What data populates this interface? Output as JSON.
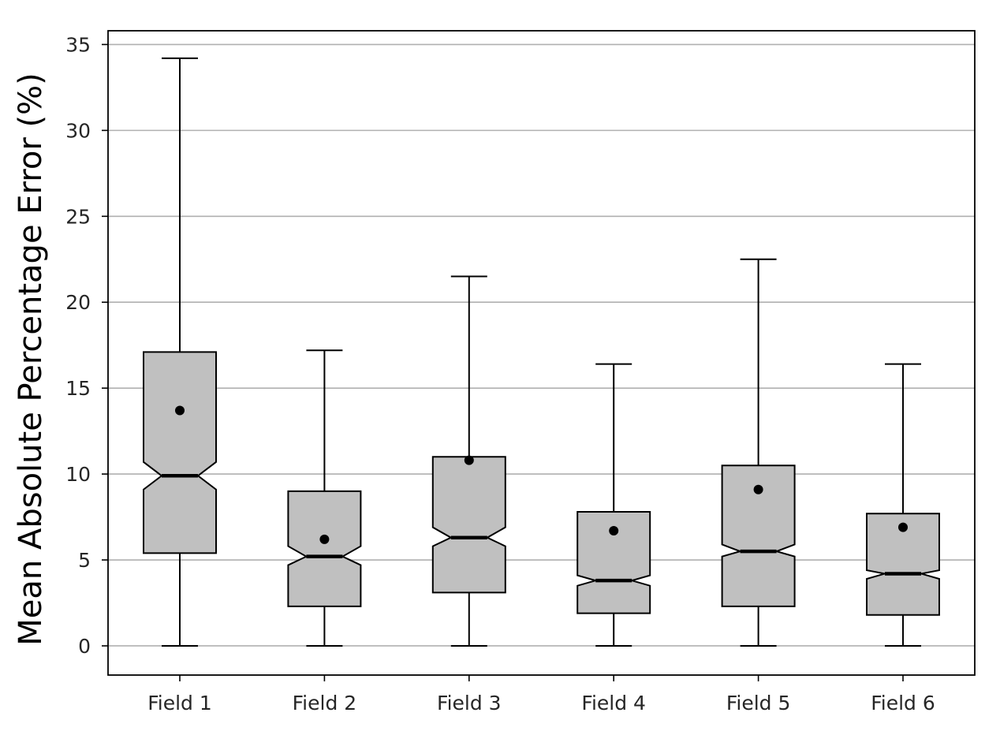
{
  "chart_data": {
    "type": "boxplot",
    "ylabel": "Mean Absolute Percentage Error (%)",
    "xlabel": "",
    "title": "",
    "ylim": [
      -1.7,
      35.8
    ],
    "yticks": [
      0,
      5,
      10,
      15,
      20,
      25,
      30,
      35
    ],
    "grid": "horizontal",
    "notched": true,
    "box_color": "#c0c0c0",
    "line_color": "#000000",
    "grid_color": "#b0b0b0",
    "categories": [
      "Field 1",
      "Field 2",
      "Field 3",
      "Field 4",
      "Field 5",
      "Field 6"
    ],
    "boxes": [
      {
        "whisker_low": 0,
        "q1": 5.4,
        "median": 9.9,
        "q3": 17.1,
        "whisker_high": 34.2,
        "mean": 13.7,
        "notch_low": 9.1,
        "notch_high": 10.7
      },
      {
        "whisker_low": 0,
        "q1": 2.3,
        "median": 5.2,
        "q3": 9.0,
        "whisker_high": 17.2,
        "mean": 6.2,
        "notch_low": 4.7,
        "notch_high": 5.8
      },
      {
        "whisker_low": 0,
        "q1": 3.1,
        "median": 6.3,
        "q3": 11.0,
        "whisker_high": 21.5,
        "mean": 10.8,
        "notch_low": 5.8,
        "notch_high": 6.9
      },
      {
        "whisker_low": 0,
        "q1": 1.9,
        "median": 3.8,
        "q3": 7.8,
        "whisker_high": 16.4,
        "mean": 6.7,
        "notch_low": 3.5,
        "notch_high": 4.1
      },
      {
        "whisker_low": 0,
        "q1": 2.3,
        "median": 5.5,
        "q3": 10.5,
        "whisker_high": 22.5,
        "mean": 9.1,
        "notch_low": 5.2,
        "notch_high": 5.9
      },
      {
        "whisker_low": 0,
        "q1": 1.8,
        "median": 4.2,
        "q3": 7.7,
        "whisker_high": 16.4,
        "mean": 6.9,
        "notch_low": 3.9,
        "notch_high": 4.4
      }
    ]
  }
}
